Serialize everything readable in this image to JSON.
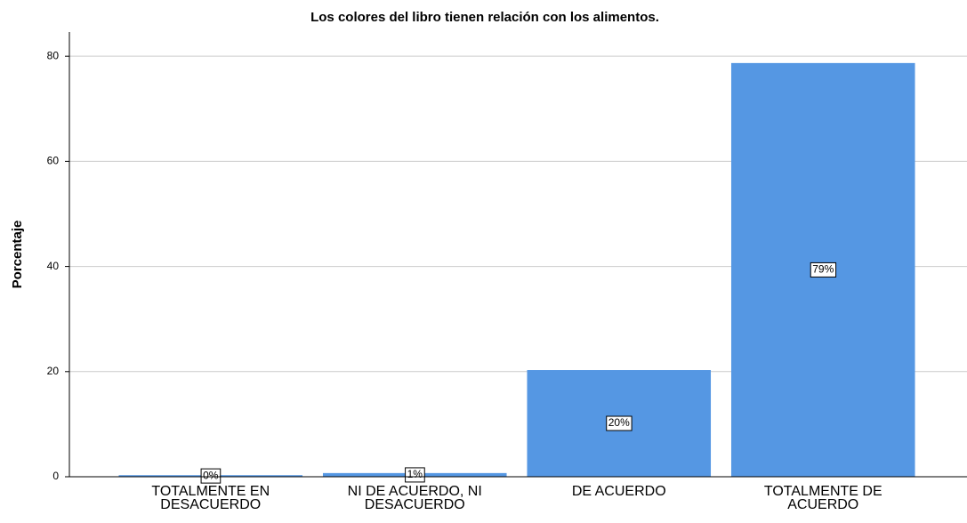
{
  "chart_data": {
    "type": "bar",
    "title": "Los colores del  libro tienen relación con los alimentos.",
    "ylabel": "Porcentaje",
    "categories": [
      "TOTALMENTE EN DESACUERDO",
      "NI DE ACUERDO, NI DESACUERDO",
      "DE ACUERDO",
      "TOTALMENTE DE ACUERDO"
    ],
    "values": [
      0.3,
      0.7,
      20.3,
      78.7
    ],
    "value_labels": [
      "0%",
      "1%",
      "20%",
      "79%"
    ],
    "color": "#5597e3",
    "ylim": [
      0,
      84.6
    ],
    "yticks": [
      0,
      20,
      40,
      60,
      80
    ],
    "grid": true
  }
}
